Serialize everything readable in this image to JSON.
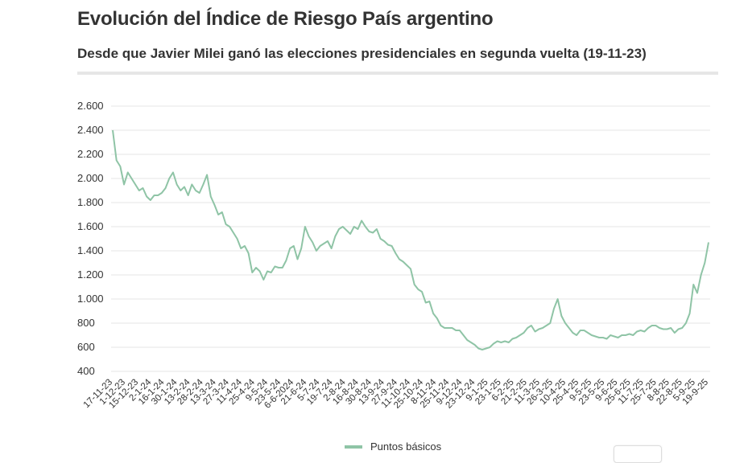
{
  "colors": {
    "line": "#8fc4a6",
    "grid": "#e6e6e6",
    "text": "#333333"
  },
  "chart_data": {
    "type": "line",
    "title": "Evolución del Índice de Riesgo País argentino",
    "subtitle": "Desde que Javier Milei ganó las elecciones presidenciales en segunda vuelta (19-11-23)",
    "ylim": [
      400,
      2600
    ],
    "yticks": [
      400,
      600,
      800,
      1000,
      1200,
      1400,
      1600,
      1800,
      2000,
      2200,
      2400,
      2600
    ],
    "ytick_labels": [
      "400",
      "600",
      "800",
      "1.000",
      "1.200",
      "1.400",
      "1.600",
      "1.800",
      "2.000",
      "2.200",
      "2.400",
      "2.600"
    ],
    "xtick_labels": [
      "17-11-23",
      "1-12-23",
      "15-12-23",
      "2-1-24",
      "16-1-24",
      "30-1-24",
      "13-2-24",
      "28-2-24",
      "13-3-24",
      "27-3-24",
      "11-4-24",
      "25-4-24",
      "9-5-24",
      "23-5-24",
      "6-6-2024",
      "21-6-24",
      "5-7-24",
      "19-7-24",
      "2-8-24",
      "16-8-24",
      "30-8-24",
      "13-9-24",
      "27-9-24",
      "11-10-24",
      "25-10-24",
      "8-11-24",
      "25-11-24",
      "9-12-24",
      "23-12-24",
      "9-1-25",
      "23-1-25",
      "6-2-25",
      "21-2-25",
      "11-3-25",
      "26-3-25",
      "10-4-25",
      "25-4-25",
      "9-5-25",
      "23-5-25",
      "9-6-25",
      "25-6-25",
      "11-7-25",
      "25-7-25",
      "8-8-25",
      "22-8-25",
      "5-9-25",
      "19-9-25"
    ],
    "grid": true,
    "legend": "bottom-center",
    "series": [
      {
        "name": "Puntos básicos",
        "values": [
          2400,
          2150,
          2100,
          1950,
          2050,
          2000,
          1950,
          1900,
          1920,
          1850,
          1820,
          1860,
          1860,
          1880,
          1920,
          2000,
          2050,
          1950,
          1900,
          1930,
          1860,
          1950,
          1900,
          1880,
          1950,
          2030,
          1850,
          1780,
          1700,
          1720,
          1620,
          1600,
          1550,
          1500,
          1420,
          1440,
          1380,
          1220,
          1260,
          1230,
          1160,
          1230,
          1220,
          1270,
          1260,
          1260,
          1320,
          1420,
          1440,
          1330,
          1420,
          1600,
          1520,
          1470,
          1400,
          1440,
          1460,
          1480,
          1420,
          1520,
          1580,
          1600,
          1570,
          1540,
          1600,
          1580,
          1650,
          1600,
          1560,
          1550,
          1580,
          1500,
          1480,
          1450,
          1440,
          1380,
          1330,
          1310,
          1280,
          1250,
          1120,
          1080,
          1060,
          970,
          980,
          880,
          840,
          780,
          760,
          760,
          760,
          740,
          740,
          700,
          660,
          640,
          620,
          590,
          580,
          590,
          600,
          630,
          650,
          640,
          650,
          640,
          670,
          680,
          700,
          720,
          760,
          780,
          730,
          750,
          760,
          780,
          800,
          920,
          1000,
          860,
          800,
          760,
          720,
          700,
          740,
          740,
          720,
          700,
          690,
          680,
          680,
          670,
          700,
          690,
          680,
          700,
          700,
          710,
          700,
          730,
          740,
          730,
          760,
          780,
          780,
          760,
          750,
          750,
          760,
          720,
          750,
          760,
          800,
          880,
          1120,
          1050,
          1200,
          1300,
          1470
        ]
      }
    ]
  },
  "legend": {
    "label": "Puntos básicos"
  }
}
